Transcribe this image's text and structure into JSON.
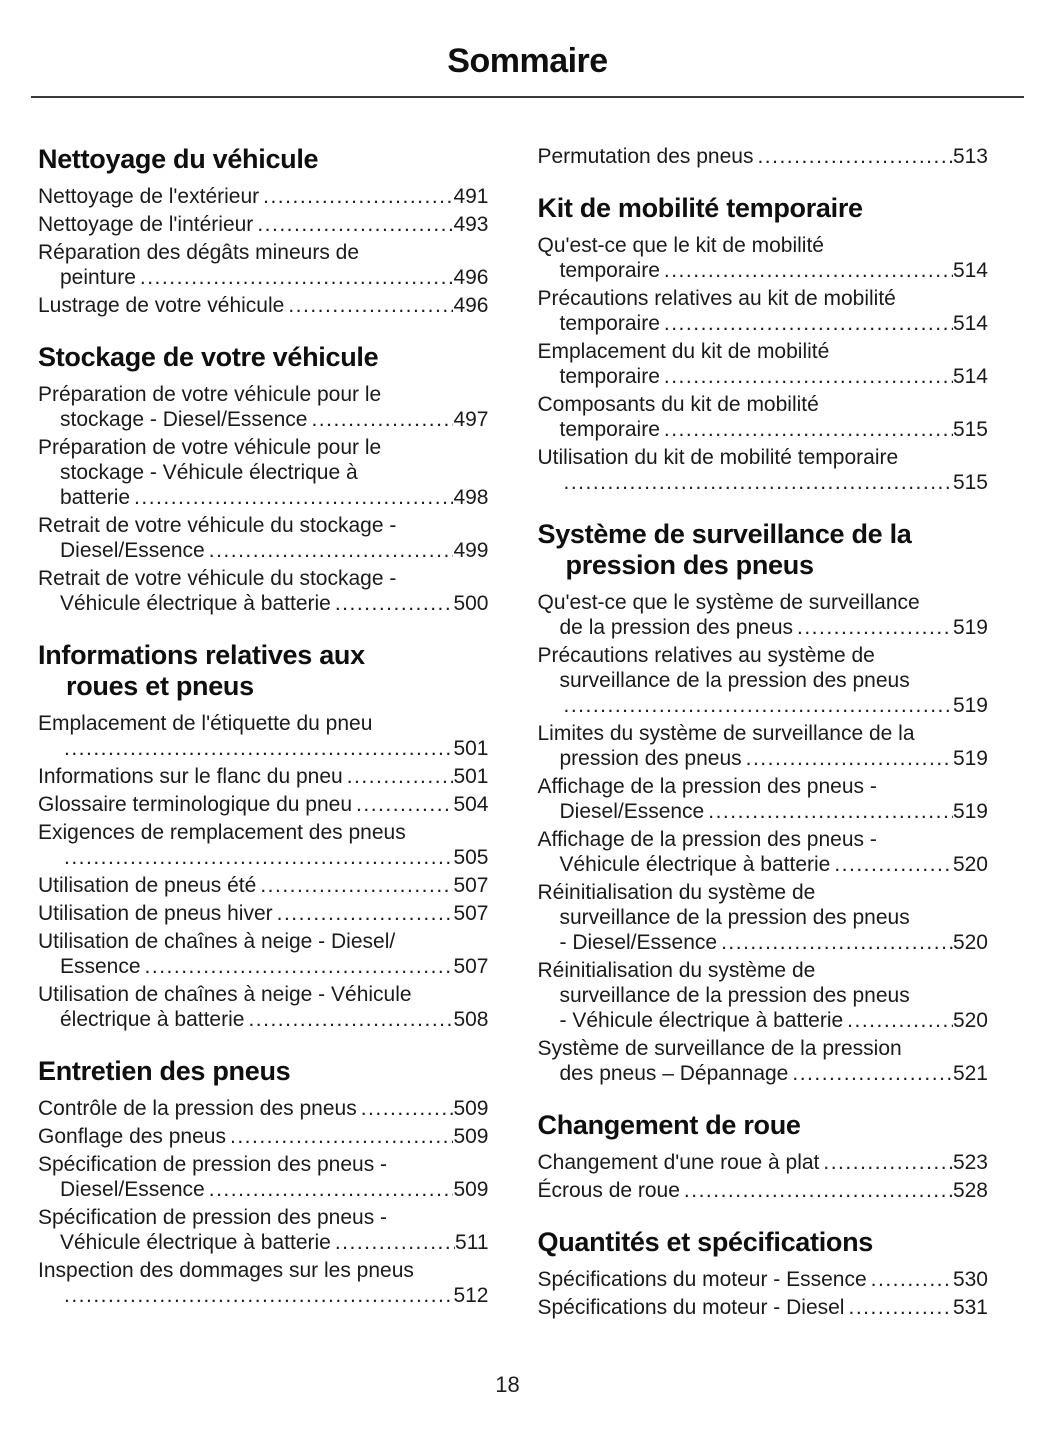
{
  "page": {
    "title": "Sommaire",
    "page_number": "18"
  },
  "colors": {
    "background": "#ffffff",
    "text": "#1a1a1a",
    "divider": "#3a3a3a"
  },
  "toc": {
    "columns": [
      {
        "sections": [
          {
            "heading": [
              "Nettoyage du véhicule"
            ],
            "entries": [
              {
                "lines": [
                  "Nettoyage de l'extérieur"
                ],
                "page": "491"
              },
              {
                "lines": [
                  "Nettoyage de l'intérieur"
                ],
                "page": "493"
              },
              {
                "lines": [
                  "Réparation des dégâts mineurs de",
                  "peinture"
                ],
                "page": "496"
              },
              {
                "lines": [
                  "Lustrage de votre véhicule"
                ],
                "page": "496"
              }
            ]
          },
          {
            "heading": [
              "Stockage de votre véhicule"
            ],
            "entries": [
              {
                "lines": [
                  "Préparation de votre véhicule pour le",
                  "stockage - Diesel/Essence"
                ],
                "page": "497"
              },
              {
                "lines": [
                  "Préparation de votre véhicule pour le",
                  "stockage - Véhicule électrique à",
                  "batterie"
                ],
                "page": "498"
              },
              {
                "lines": [
                  "Retrait de votre véhicule du stockage -",
                  "Diesel/Essence"
                ],
                "page": "499"
              },
              {
                "lines": [
                  "Retrait de votre véhicule du stockage -",
                  "Véhicule électrique à batterie"
                ],
                "page": "500"
              }
            ]
          },
          {
            "heading": [
              "Informations relatives aux",
              "roues et pneus"
            ],
            "entries": [
              {
                "lines": [
                  "Emplacement de l'étiquette du pneu",
                  ""
                ],
                "page": "501"
              },
              {
                "lines": [
                  "Informations sur le flanc du pneu"
                ],
                "page": "501"
              },
              {
                "lines": [
                  "Glossaire terminologique du pneu"
                ],
                "page": "504"
              },
              {
                "lines": [
                  "Exigences de remplacement des pneus",
                  ""
                ],
                "page": "505"
              },
              {
                "lines": [
                  "Utilisation de pneus été"
                ],
                "page": "507"
              },
              {
                "lines": [
                  "Utilisation de pneus hiver"
                ],
                "page": "507"
              },
              {
                "lines": [
                  "Utilisation de chaînes à neige - Diesel/",
                  "Essence"
                ],
                "page": "507"
              },
              {
                "lines": [
                  "Utilisation de chaînes à neige - Véhicule",
                  "électrique à batterie"
                ],
                "page": "508"
              }
            ]
          },
          {
            "heading": [
              "Entretien des pneus"
            ],
            "entries": [
              {
                "lines": [
                  "Contrôle de la pression des pneus"
                ],
                "page": "509"
              },
              {
                "lines": [
                  "Gonflage des pneus"
                ],
                "page": "509"
              },
              {
                "lines": [
                  "Spécification de pression des pneus -",
                  "Diesel/Essence"
                ],
                "page": "509"
              },
              {
                "lines": [
                  "Spécification de pression des pneus -",
                  "Véhicule électrique à batterie"
                ],
                "page": "511"
              },
              {
                "lines": [
                  "Inspection des dommages sur les pneus",
                  ""
                ],
                "page": "512"
              }
            ]
          }
        ]
      },
      {
        "sections": [
          {
            "heading": null,
            "entries": [
              {
                "lines": [
                  "Permutation des pneus"
                ],
                "page": "513"
              }
            ]
          },
          {
            "heading": [
              "Kit de mobilité temporaire"
            ],
            "entries": [
              {
                "lines": [
                  "Qu'est-ce que le kit de mobilité",
                  "temporaire"
                ],
                "page": "514"
              },
              {
                "lines": [
                  "Précautions relatives au kit de mobilité",
                  "temporaire"
                ],
                "page": "514"
              },
              {
                "lines": [
                  "Emplacement du kit de mobilité",
                  "temporaire"
                ],
                "page": "514"
              },
              {
                "lines": [
                  "Composants du kit de mobilité",
                  "temporaire"
                ],
                "page": "515"
              },
              {
                "lines": [
                  "Utilisation du kit de mobilité temporaire",
                  ""
                ],
                "page": "515"
              }
            ]
          },
          {
            "heading": [
              "Système de surveillance de la",
              "pression des pneus"
            ],
            "entries": [
              {
                "lines": [
                  "Qu'est-ce que le système de surveillance",
                  "de la pression des pneus"
                ],
                "page": "519"
              },
              {
                "lines": [
                  "Précautions relatives au système de",
                  "surveillance de la pression des pneus",
                  ""
                ],
                "page": "519"
              },
              {
                "lines": [
                  "Limites du système de surveillance de la",
                  "pression des pneus"
                ],
                "page": "519"
              },
              {
                "lines": [
                  "Affichage de la pression des pneus -",
                  "Diesel/Essence"
                ],
                "page": "519"
              },
              {
                "lines": [
                  "Affichage de la pression des pneus -",
                  "Véhicule électrique à batterie"
                ],
                "page": "520"
              },
              {
                "lines": [
                  "Réinitialisation du système de",
                  "surveillance de la pression des pneus",
                  "- Diesel/Essence"
                ],
                "page": "520"
              },
              {
                "lines": [
                  "Réinitialisation du système de",
                  "surveillance de la pression des pneus",
                  "- Véhicule électrique à batterie"
                ],
                "page": "520"
              },
              {
                "lines": [
                  "Système de surveillance de la pression",
                  "des pneus – Dépannage"
                ],
                "page": "521"
              }
            ]
          },
          {
            "heading": [
              "Changement de roue"
            ],
            "entries": [
              {
                "lines": [
                  "Changement d'une roue à plat"
                ],
                "page": "523"
              },
              {
                "lines": [
                  "Écrous de roue"
                ],
                "page": "528"
              }
            ]
          },
          {
            "heading": [
              "Quantités et spécifications"
            ],
            "entries": [
              {
                "lines": [
                  "Spécifications du moteur - Essence"
                ],
                "page": "530"
              },
              {
                "lines": [
                  "Spécifications du moteur - Diesel"
                ],
                "page": "531"
              }
            ]
          }
        ]
      }
    ]
  }
}
